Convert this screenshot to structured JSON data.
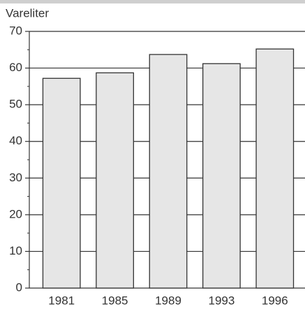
{
  "chart_data": {
    "type": "bar",
    "y_label": "Vareliter",
    "categories": [
      "1981",
      "1985",
      "1989",
      "1993",
      "1996"
    ],
    "values": [
      57.2,
      58.7,
      63.7,
      61.2,
      65.2
    ],
    "color": "#e6e6e6",
    "edge_color": "#333333",
    "ylim": [
      0,
      70
    ],
    "yticks": [
      0,
      10,
      20,
      30,
      40,
      50,
      60,
      70
    ],
    "y_minor_ticks": [
      5,
      15,
      25,
      35,
      45,
      55,
      65
    ],
    "grid": true
  }
}
